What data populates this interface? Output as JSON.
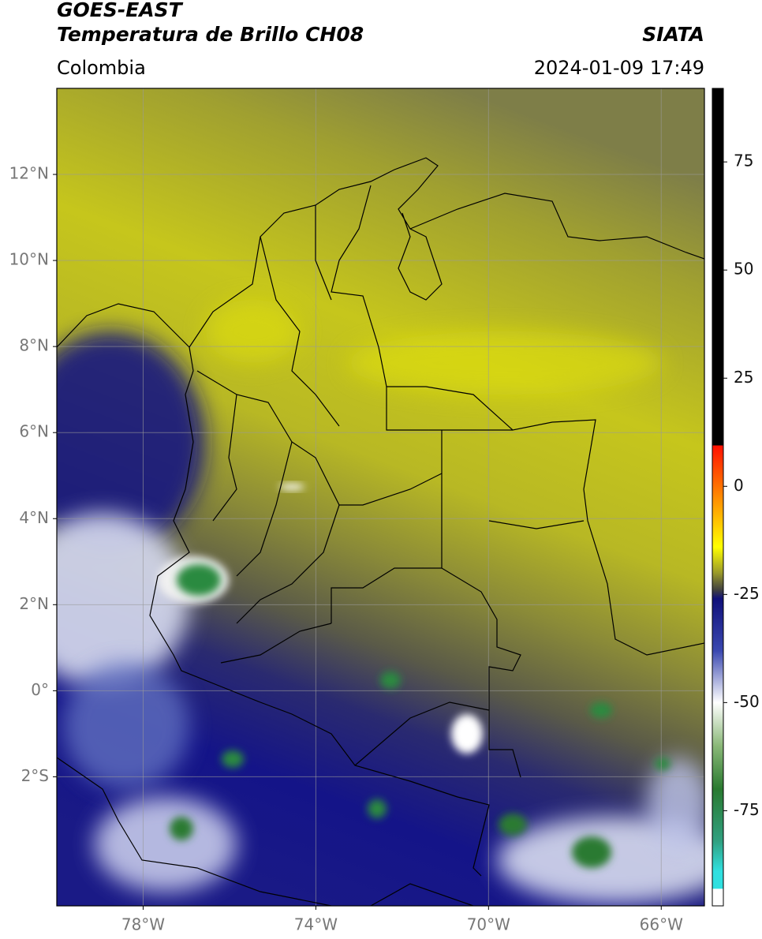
{
  "header": {
    "title": "GOES-EAST",
    "subtitle": "Temperatura de Brillo CH08",
    "region": "Colombia",
    "source": "SIATA",
    "datetime": "2024-01-09 17:49"
  },
  "chart_data": {
    "type": "map",
    "xlim": [
      -80,
      -65
    ],
    "ylim": [
      -5,
      14
    ],
    "xticks": [
      {
        "value": -78,
        "label": "78°W"
      },
      {
        "value": -74,
        "label": "74°W"
      },
      {
        "value": -70,
        "label": "70°W"
      },
      {
        "value": -66,
        "label": "66°W"
      }
    ],
    "yticks": [
      {
        "value": 12,
        "label": "12°N"
      },
      {
        "value": 10,
        "label": "10°N"
      },
      {
        "value": 8,
        "label": "8°N"
      },
      {
        "value": 6,
        "label": "6°N"
      },
      {
        "value": 4,
        "label": "4°N"
      },
      {
        "value": 2,
        "label": "2°N"
      },
      {
        "value": 0,
        "label": "0°"
      },
      {
        "value": -2,
        "label": "2°S"
      }
    ],
    "grid": true,
    "colorbar": {
      "lim": [
        -97,
        92
      ],
      "ticks": [
        75,
        50,
        25,
        0,
        -25,
        -50,
        -75
      ],
      "stops": [
        {
          "value": 92,
          "color": "#000000"
        },
        {
          "value": 9.5,
          "color": "#000000"
        },
        {
          "value": 9.4,
          "color": "#ff1000"
        },
        {
          "value": -4,
          "color": "#ff9a00"
        },
        {
          "value": -14,
          "color": "#ffff00"
        },
        {
          "value": -20,
          "color": "#9a9a2a"
        },
        {
          "value": -24,
          "color": "#404040"
        },
        {
          "value": -26,
          "color": "#10107a"
        },
        {
          "value": -38,
          "color": "#3a48b0"
        },
        {
          "value": -50,
          "color": "#ffffff"
        },
        {
          "value": -60,
          "color": "#8ab878"
        },
        {
          "value": -70,
          "color": "#2a7a30"
        },
        {
          "value": -82,
          "color": "#30a080"
        },
        {
          "value": -89,
          "color": "#30e0e0"
        },
        {
          "value": -93,
          "color": "#30e0e0"
        },
        {
          "value": -93.1,
          "color": "#ffffff"
        },
        {
          "value": -97,
          "color": "#ffffff"
        }
      ]
    }
  }
}
